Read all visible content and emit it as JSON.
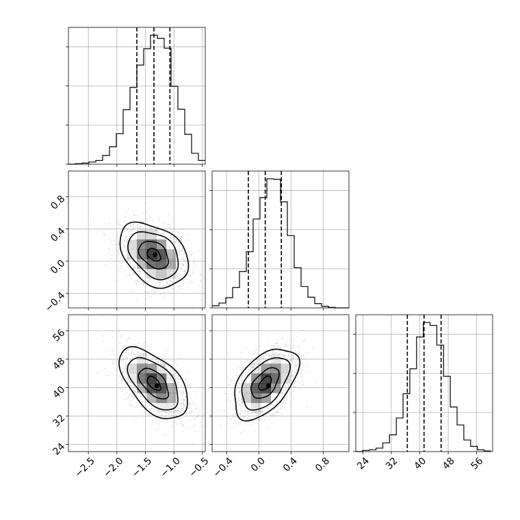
{
  "chart_data": {
    "type": "corner",
    "grid": true,
    "colors": {
      "line": "#000000",
      "grid": "#b0b0b0",
      "points": "#9a9a9a",
      "density": "#000000"
    },
    "parameters": [
      {
        "range": [
          -2.85,
          -0.45
        ],
        "ticks": [
          -2.5,
          -2.0,
          -1.5,
          -1.0,
          -0.5
        ],
        "tick_labels": [
          "−2.5",
          "−2.0",
          "−1.5",
          "−1.0",
          "−0.5"
        ],
        "mean": -1.35,
        "sd": 0.3,
        "quantiles": [
          -1.65,
          -1.35,
          -1.07
        ]
      },
      {
        "range": [
          -0.58,
          1.12
        ],
        "ticks": [
          -0.4,
          0.0,
          0.4,
          0.8
        ],
        "tick_labels": [
          "−0.4",
          "0.0",
          "0.4",
          "0.8"
        ],
        "mean": 0.08,
        "sd": 0.2,
        "quantiles": [
          -0.13,
          0.08,
          0.28
        ]
      },
      {
        "range": [
          22.0,
          60.5
        ],
        "ticks": [
          24,
          32,
          40,
          48,
          56
        ],
        "tick_labels": [
          "24",
          "32",
          "40",
          "48",
          "56"
        ],
        "mean": 41.2,
        "sd": 5.0,
        "quantiles": [
          36.5,
          41.2,
          46.0
        ]
      }
    ],
    "histograms": [
      {
        "bin_edges": [
          -2.85,
          -2.73,
          -2.61,
          -2.49,
          -2.37,
          -2.25,
          -2.13,
          -2.01,
          -1.89,
          -1.77,
          -1.65,
          -1.53,
          -1.41,
          -1.29,
          -1.17,
          -1.05,
          -0.93,
          -0.81,
          -0.69,
          -0.57,
          -0.45
        ],
        "counts": [
          0,
          1,
          2,
          4,
          7,
          16,
          32,
          56,
          100,
          141,
          182,
          212,
          237,
          231,
          213,
          143,
          101,
          55,
          20,
          7
        ]
      },
      {
        "bin_edges": [
          -0.58,
          -0.495,
          -0.41,
          -0.325,
          -0.24,
          -0.155,
          -0.07,
          0.015,
          0.1,
          0.185,
          0.27,
          0.355,
          0.44,
          0.525,
          0.61,
          0.695,
          0.78,
          0.865,
          0.95,
          1.035,
          1.12
        ],
        "counts": [
          4,
          9,
          19,
          38,
          68,
          105,
          166,
          206,
          241,
          240,
          198,
          135,
          75,
          40,
          20,
          8,
          3,
          1,
          0,
          0
        ]
      },
      {
        "bin_edges": [
          22.0,
          23.9,
          25.8,
          27.7,
          29.6,
          31.5,
          33.4,
          35.3,
          37.2,
          39.1,
          41.0,
          42.9,
          44.8,
          46.7,
          48.6,
          50.5,
          52.4,
          54.3,
          56.2,
          58.1,
          60.0
        ],
        "counts": [
          0,
          2,
          3,
          6,
          15,
          29,
          58,
          100,
          143,
          198,
          223,
          218,
          184,
          130,
          77,
          46,
          20,
          9,
          3,
          1
        ]
      }
    ],
    "pairs": [
      {
        "x": 0,
        "y": 1,
        "correlation": -0.35,
        "contour_levels": [
          0.39,
          0.86,
          1.47,
          2.0
        ]
      },
      {
        "x": 0,
        "y": 2,
        "correlation": -0.55,
        "contour_levels": [
          0.39,
          0.86,
          1.47,
          2.0
        ]
      },
      {
        "x": 1,
        "y": 2,
        "correlation": 0.5,
        "contour_levels": [
          0.39,
          0.86,
          1.47,
          2.0
        ]
      }
    ],
    "density_peaks": [
      {
        "pair": 0,
        "point": [
          -1.33,
          0.08
        ]
      },
      {
        "pair": 1,
        "point": [
          -1.3,
          40.5
        ]
      },
      {
        "pair": 2,
        "point": [
          0.12,
          40.5
        ]
      }
    ]
  }
}
